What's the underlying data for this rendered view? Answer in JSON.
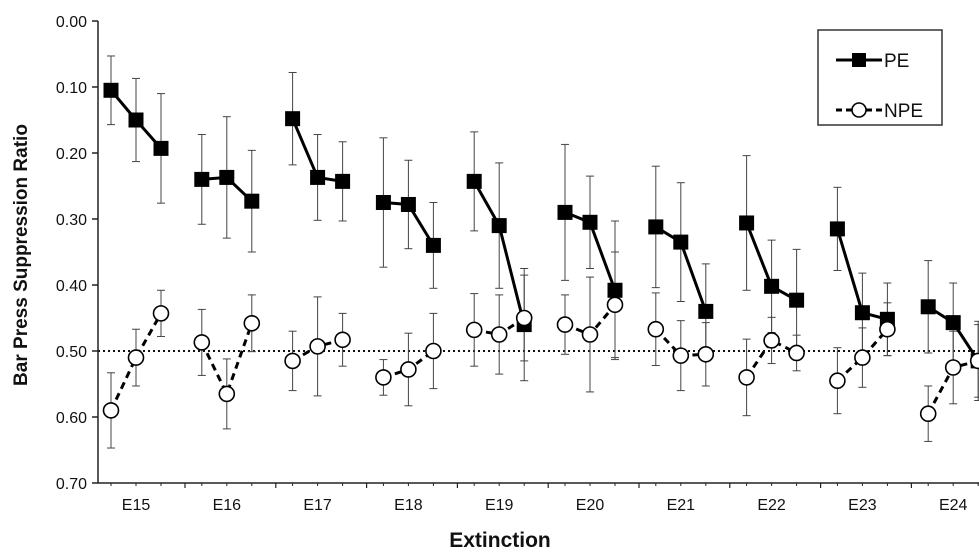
{
  "chart_data": {
    "type": "line",
    "title": "",
    "xlabel": "Extinction",
    "ylabel": "Bar Press Suppression Ratio",
    "y_inverted": true,
    "ylim": [
      0.0,
      0.7
    ],
    "yticks": [
      "0.00",
      "0.10",
      "0.20",
      "0.30",
      "0.40",
      "0.50",
      "0.60",
      "0.70"
    ],
    "categories": [
      "E15",
      "E16",
      "E17",
      "E18",
      "E19",
      "E20",
      "E21",
      "E22",
      "E23",
      "E24"
    ],
    "trials_per_session": 3,
    "reference_line": {
      "y": 0.5,
      "style": "dotted"
    },
    "grid": false,
    "legend": {
      "position": "top-right",
      "entries": [
        "PE",
        "NPE"
      ]
    },
    "series": [
      {
        "name": "PE",
        "marker": "filled-square",
        "line": "solid",
        "color": "#000000",
        "sessions": [
          {
            "session": "E15",
            "values": [
              0.105,
              0.15,
              0.193
            ],
            "errors": [
              0.052,
              0.063,
              0.083
            ]
          },
          {
            "session": "E16",
            "values": [
              0.24,
              0.237,
              0.273
            ],
            "errors": [
              0.068,
              0.092,
              0.077
            ]
          },
          {
            "session": "E17",
            "values": [
              0.148,
              0.237,
              0.243
            ],
            "errors": [
              0.07,
              0.065,
              0.06
            ]
          },
          {
            "session": "E18",
            "values": [
              0.275,
              0.278,
              0.34
            ],
            "errors": [
              0.098,
              0.067,
              0.065
            ]
          },
          {
            "session": "E19",
            "values": [
              0.243,
              0.31,
              0.46
            ],
            "errors": [
              0.075,
              0.095,
              0.085
            ]
          },
          {
            "session": "E20",
            "values": [
              0.29,
              0.305,
              0.408
            ],
            "errors": [
              0.103,
              0.07,
              0.105
            ]
          },
          {
            "session": "E21",
            "values": [
              0.312,
              0.335,
              0.44
            ],
            "errors": [
              0.092,
              0.09,
              0.072
            ]
          },
          {
            "session": "E22",
            "values": [
              0.306,
              0.402,
              0.423
            ],
            "errors": [
              0.102,
              0.07,
              0.077
            ]
          },
          {
            "session": "E23",
            "values": [
              0.315,
              0.442,
              0.452
            ],
            "errors": [
              0.063,
              0.06,
              0.055
            ]
          },
          {
            "session": "E24",
            "values": [
              0.433,
              0.457,
              0.515
            ],
            "errors": [
              0.07,
              0.06,
              0.06
            ]
          }
        ]
      },
      {
        "name": "NPE",
        "marker": "open-circle",
        "line": "dashed",
        "color": "#000000",
        "sessions": [
          {
            "session": "E15",
            "values": [
              0.59,
              0.51,
              0.443
            ],
            "errors": [
              0.057,
              0.043,
              0.035
            ]
          },
          {
            "session": "E16",
            "values": [
              0.487,
              0.565,
              0.458
            ],
            "errors": [
              0.05,
              0.053,
              0.043
            ]
          },
          {
            "session": "E17",
            "values": [
              0.515,
              0.493,
              0.483
            ],
            "errors": [
              0.045,
              0.075,
              0.04
            ]
          },
          {
            "session": "E18",
            "values": [
              0.54,
              0.528,
              0.5
            ],
            "errors": [
              0.027,
              0.055,
              0.057
            ]
          },
          {
            "session": "E19",
            "values": [
              0.468,
              0.475,
              0.45
            ],
            "errors": [
              0.055,
              0.06,
              0.065
            ]
          },
          {
            "session": "E20",
            "values": [
              0.46,
              0.475,
              0.43
            ],
            "errors": [
              0.045,
              0.087,
              0.08
            ]
          },
          {
            "session": "E21",
            "values": [
              0.467,
              0.507,
              0.505
            ],
            "errors": [
              0.055,
              0.053,
              0.048
            ]
          },
          {
            "session": "E22",
            "values": [
              0.54,
              0.484,
              0.503
            ],
            "errors": [
              0.058,
              0.035,
              0.027
            ]
          },
          {
            "session": "E23",
            "values": [
              0.545,
              0.51,
              0.467
            ],
            "errors": [
              0.05,
              0.045,
              0.04
            ]
          },
          {
            "session": "E24",
            "values": [
              0.595,
              0.525,
              0.515
            ],
            "errors": [
              0.042,
              0.055,
              0.055
            ]
          }
        ]
      }
    ]
  }
}
